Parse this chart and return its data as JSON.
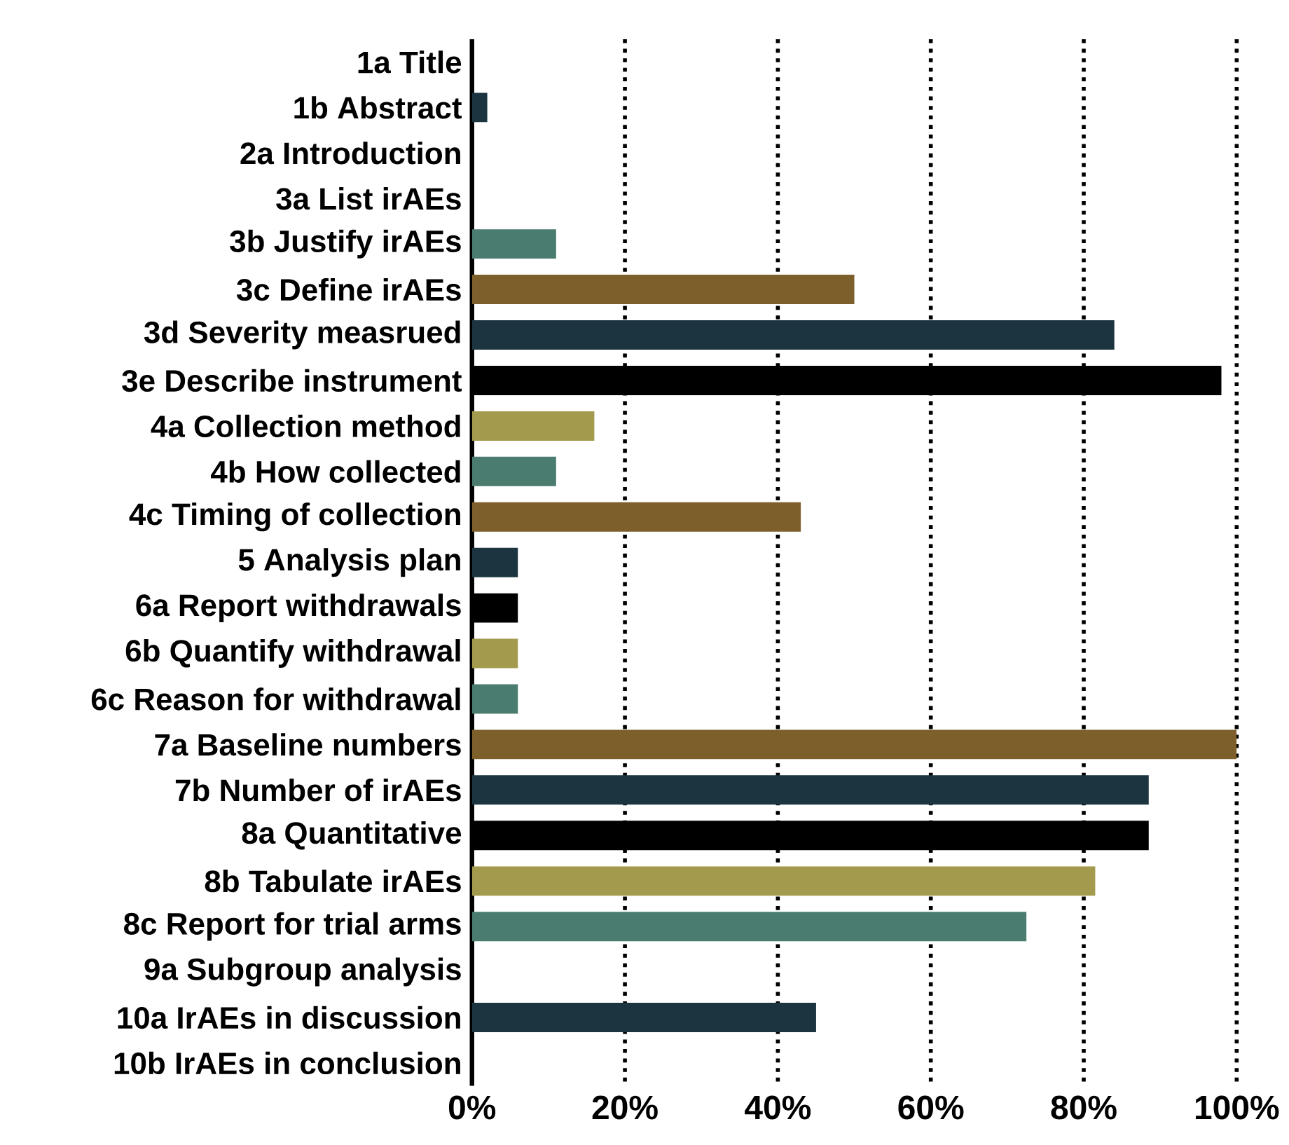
{
  "chart_data": {
    "type": "bar",
    "orientation": "horizontal",
    "categories": [
      "1a Title",
      "1b Abstract",
      "2a Introduction",
      "3a List irAEs",
      "3b Justify irAEs",
      "3c Define irAEs",
      "3d Severity measrued",
      "3e Describe instrument",
      "4a Collection method",
      "4b How collected",
      "4c Timing of collection",
      "5 Analysis plan",
      "6a Report withdrawals",
      "6b Quantify withdrawal",
      "6c Reason for withdrawal",
      "7a Baseline numbers",
      "7b Number of irAEs",
      "8a Quantitative",
      "8b Tabulate irAEs",
      "8c Report for trial arms",
      "9a Subgroup analysis",
      "10a IrAEs in discussion",
      "10b IrAEs in conclusion"
    ],
    "values": [
      0,
      2,
      0,
      0,
      11,
      50,
      84,
      98,
      16,
      11,
      43,
      6,
      6,
      6,
      6,
      100,
      88.5,
      88.5,
      81.5,
      72.5,
      0,
      45,
      0
    ],
    "colors": [
      "#7d5f2b",
      "#1b3440",
      "#000000",
      "#a39a4d",
      "#4a7c70",
      "#7d5f2b",
      "#1b3440",
      "#000000",
      "#a39a4d",
      "#4a7c70",
      "#7d5f2b",
      "#1b3440",
      "#000000",
      "#a39a4d",
      "#4a7c70",
      "#7d5f2b",
      "#1b3440",
      "#000000",
      "#a39a4d",
      "#4a7c70",
      "#7d5f2b",
      "#1b3440",
      "#000000"
    ],
    "xlim": [
      0,
      100
    ],
    "xticks": [
      {
        "value": 0,
        "label": "0%"
      },
      {
        "value": 20,
        "label": "20%"
      },
      {
        "value": 40,
        "label": "40%"
      },
      {
        "value": 60,
        "label": "60%"
      },
      {
        "value": 80,
        "label": "80%"
      },
      {
        "value": 100,
        "label": "100%"
      }
    ],
    "grid": "x"
  }
}
